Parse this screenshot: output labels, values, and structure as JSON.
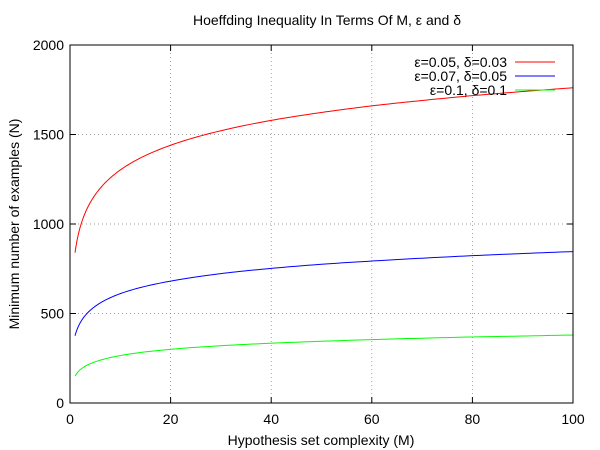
{
  "chart_data": {
    "type": "line",
    "title": "Hoeffding Inequality In Terms Of M, ε and δ",
    "xlabel": "Hypothesis set complexity (M)",
    "ylabel": "Minimum number of examples (N)",
    "xlim": [
      0,
      100
    ],
    "ylim": [
      0,
      2000
    ],
    "x_ticks": [
      0,
      20,
      40,
      60,
      80,
      100
    ],
    "y_ticks": [
      0,
      500,
      1000,
      1500,
      2000
    ],
    "grid": true,
    "legend_position": "top-right",
    "series": [
      {
        "name": "ε=0.05, δ=0.03",
        "color": "#ff0000",
        "x": [
          1,
          2,
          5,
          10,
          20,
          30,
          40,
          50,
          60,
          70,
          80,
          90,
          100
        ],
        "y": [
          840,
          980,
          1163,
          1302,
          1440,
          1521,
          1579,
          1623,
          1660,
          1690,
          1717,
          1740,
          1761
        ]
      },
      {
        "name": "ε=0.07, δ=0.05",
        "color": "#0000ff",
        "x": [
          1,
          2,
          5,
          10,
          20,
          30,
          40,
          50,
          60,
          70,
          80,
          90,
          100
        ],
        "y": [
          376,
          447,
          540,
          611,
          681,
          723,
          752,
          775,
          793,
          809,
          823,
          835,
          846
        ]
      },
      {
        "name": "ε=0.1, δ=0.1",
        "color": "#00ff00",
        "x": [
          1,
          2,
          5,
          10,
          20,
          30,
          40,
          50,
          60,
          70,
          80,
          90,
          100
        ],
        "y": [
          150,
          185,
          230,
          265,
          300,
          320,
          334,
          345,
          354,
          362,
          369,
          374,
          380
        ]
      }
    ]
  }
}
